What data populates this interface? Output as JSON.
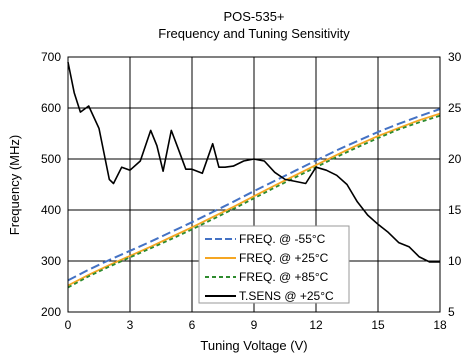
{
  "chart_data": {
    "type": "line",
    "title": "POS-535+",
    "subtitle": "Frequency and Tuning Sensitivity",
    "xlabel": "Tuning Voltage (V)",
    "ylabel": "Frequency (MHz)",
    "xlim": [
      0,
      18
    ],
    "ylim": [
      200,
      700
    ],
    "y2lim": [
      5,
      30
    ],
    "x_ticks": [
      "0",
      "3",
      "6",
      "9",
      "12",
      "15",
      "18"
    ],
    "y_ticks": [
      "200",
      "300",
      "400",
      "500",
      "600",
      "700"
    ],
    "y2_ticks": [
      "5",
      "10",
      "15",
      "20",
      "25",
      "30"
    ],
    "grid": true,
    "legend_position": "bottom-center",
    "series": [
      {
        "name": "FREQ. @ -55°C",
        "axis": "left",
        "color": "#4472C4",
        "dash": "dashed",
        "x": [
          0,
          1,
          2,
          3,
          4,
          5,
          6,
          7,
          8,
          9,
          10,
          11,
          12,
          13,
          14,
          15,
          16,
          17,
          18
        ],
        "y": [
          262,
          283,
          302,
          320,
          338,
          357,
          376,
          396,
          416,
          437,
          457,
          477,
          497,
          517,
          535,
          553,
          569,
          584,
          598
        ]
      },
      {
        "name": "FREQ. @ +25°C",
        "axis": "left",
        "color": "#F5A623",
        "dash": "solid",
        "x": [
          0,
          1,
          2,
          3,
          4,
          5,
          6,
          7,
          8,
          9,
          10,
          11,
          12,
          13,
          14,
          15,
          16,
          17,
          18
        ],
        "y": [
          252,
          273,
          292,
          310,
          328,
          347,
          366,
          386,
          406,
          427,
          448,
          468,
          488,
          508,
          527,
          545,
          561,
          576,
          589
        ]
      },
      {
        "name": "FREQ. @ +85°C",
        "axis": "left",
        "color": "#2E8B2E",
        "dash": "dashed",
        "x": [
          0,
          1,
          2,
          3,
          4,
          5,
          6,
          7,
          8,
          9,
          10,
          11,
          12,
          13,
          14,
          15,
          16,
          17,
          18
        ],
        "y": [
          248,
          270,
          289,
          307,
          325,
          343,
          362,
          382,
          402,
          423,
          444,
          464,
          484,
          504,
          523,
          541,
          558,
          572,
          585
        ]
      },
      {
        "name": "T.SENS @ +25°C",
        "axis": "right",
        "color": "#000000",
        "dash": "solid",
        "x": [
          0,
          0.3,
          0.6,
          1,
          1.5,
          2,
          2.2,
          2.6,
          3,
          3.5,
          4,
          4.3,
          4.6,
          5,
          5.3,
          5.7,
          6,
          6.5,
          7,
          7.3,
          7.6,
          8,
          8.5,
          9,
          9.5,
          10,
          10.5,
          11,
          11.5,
          12,
          12.5,
          13,
          13.5,
          14,
          14.5,
          15,
          15.5,
          16,
          16.5,
          17,
          17.5,
          18
        ],
        "y": [
          29.5,
          26.5,
          24.6,
          25.2,
          23.0,
          18.0,
          17.6,
          19.2,
          18.9,
          19.8,
          22.8,
          21.3,
          18.8,
          22.8,
          21.2,
          19.0,
          19.0,
          18.6,
          21.5,
          19.2,
          19.2,
          19.3,
          19.8,
          20.0,
          19.8,
          18.7,
          18.0,
          17.8,
          17.6,
          19.2,
          18.9,
          18.4,
          17.5,
          15.8,
          14.5,
          13.6,
          12.8,
          11.8,
          11.4,
          10.4,
          9.9,
          9.9
        ]
      }
    ]
  }
}
